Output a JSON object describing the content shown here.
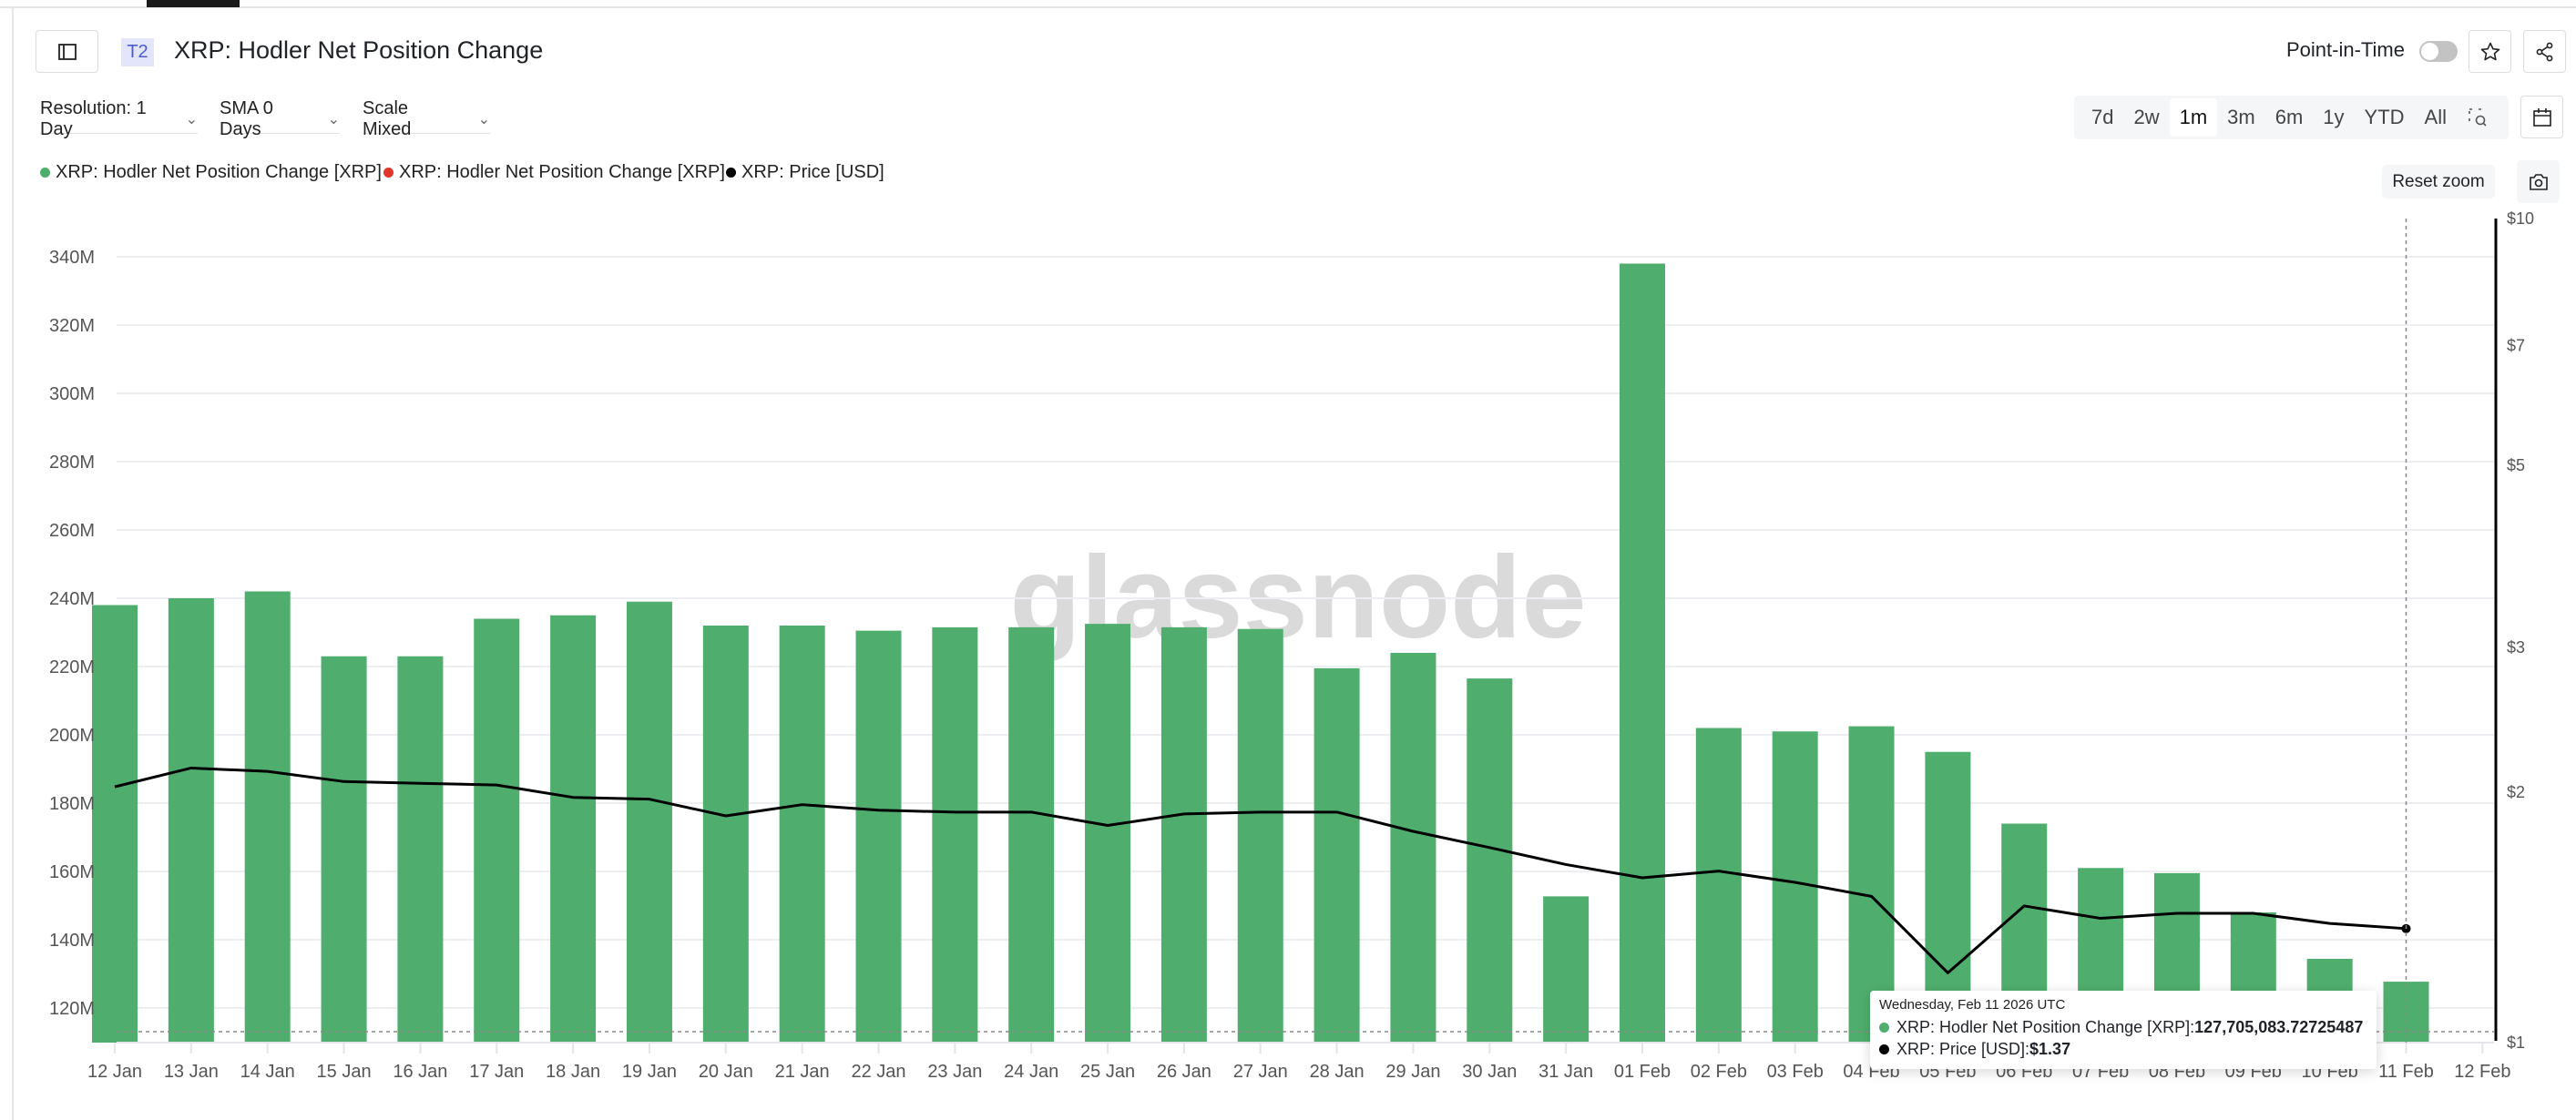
{
  "header": {
    "badge": "T2",
    "title": "XRP: Hodler Net Position Change",
    "point_in_time_label": "Point-in-Time",
    "point_in_time_on": false
  },
  "controls": {
    "resolution": "Resolution: 1 Day",
    "sma": "SMA 0 Days",
    "scale": "Scale Mixed",
    "ranges": [
      "7d",
      "2w",
      "1m",
      "3m",
      "6m",
      "1y",
      "YTD",
      "All"
    ],
    "active_range": "1m",
    "reset_zoom": "Reset zoom"
  },
  "legend": [
    {
      "label": "XRP: Hodler Net Position Change [XRP]",
      "color": "#4fae6d"
    },
    {
      "label": "XRP: Hodler Net Position Change [XRP]",
      "color": "#e0362b"
    },
    {
      "label": "XRP: Price [USD]",
      "color": "#000000"
    }
  ],
  "watermark": "glassnode",
  "tooltip": {
    "date": "Wednesday, Feb 11 2026 UTC",
    "series1_label": "XRP: Hodler Net Position Change [XRP]: ",
    "series1_value": "127,705,083.72725487",
    "series2_label": "XRP: Price [USD]: ",
    "series2_value": "$1.37"
  },
  "chart_data": {
    "type": "bar",
    "title": "XRP: Hodler Net Position Change",
    "categories": [
      "12 Jan",
      "13 Jan",
      "14 Jan",
      "15 Jan",
      "16 Jan",
      "17 Jan",
      "18 Jan",
      "19 Jan",
      "20 Jan",
      "21 Jan",
      "22 Jan",
      "23 Jan",
      "24 Jan",
      "25 Jan",
      "26 Jan",
      "27 Jan",
      "28 Jan",
      "29 Jan",
      "30 Jan",
      "31 Jan",
      "01 Feb",
      "02 Feb",
      "03 Feb",
      "04 Feb",
      "05 Feb",
      "06 Feb",
      "07 Feb",
      "08 Feb",
      "09 Feb",
      "10 Feb",
      "11 Feb"
    ],
    "x_tick_labels": [
      "12 Jan",
      "13 Jan",
      "14 Jan",
      "15 Jan",
      "16 Jan",
      "17 Jan",
      "18 Jan",
      "19 Jan",
      "20 Jan",
      "21 Jan",
      "22 Jan",
      "23 Jan",
      "24 Jan",
      "25 Jan",
      "26 Jan",
      "27 Jan",
      "28 Jan",
      "29 Jan",
      "30 Jan",
      "31 Jan",
      "01 Feb",
      "02 Feb",
      "03 Feb",
      "04 Feb",
      "05 Feb",
      "06 Feb",
      "07 Feb",
      "08 Feb",
      "09 Feb",
      "10 Feb",
      "11 Feb",
      "12 Feb"
    ],
    "series": [
      {
        "name": "XRP: Hodler Net Position Change [XRP]",
        "type": "bar",
        "axis": "left",
        "color": "#4fae6d",
        "values": [
          238000000,
          240000000,
          242000000,
          223000000,
          223000000,
          234000000,
          235000000,
          239000000,
          232000000,
          232000000,
          230500000,
          231500000,
          231500000,
          232500000,
          231500000,
          231000000,
          219500000,
          224000000,
          216500000,
          152700000,
          338000000,
          202000000,
          201000000,
          202500000,
          195000000,
          174000000,
          161000000,
          159500000,
          148000000,
          134400000,
          127705083.73
        ]
      },
      {
        "name": "XRP: Price [USD]",
        "type": "line",
        "axis": "right",
        "color": "#000000",
        "values": [
          2.04,
          2.15,
          2.13,
          2.07,
          2.06,
          2.05,
          1.98,
          1.97,
          1.88,
          1.94,
          1.91,
          1.9,
          1.9,
          1.83,
          1.89,
          1.9,
          1.9,
          1.8,
          1.72,
          1.64,
          1.58,
          1.61,
          1.56,
          1.5,
          1.21,
          1.46,
          1.41,
          1.43,
          1.43,
          1.39,
          1.37
        ]
      }
    ],
    "y_left": {
      "ticks": [
        "120M",
        "140M",
        "160M",
        "180M",
        "200M",
        "220M",
        "240M",
        "260M",
        "280M",
        "300M",
        "320M",
        "340M"
      ],
      "tick_values": [
        120000000,
        140000000,
        160000000,
        180000000,
        200000000,
        220000000,
        240000000,
        260000000,
        280000000,
        300000000,
        320000000,
        340000000
      ],
      "range": [
        110000000,
        350000000
      ]
    },
    "y_right": {
      "scale": "log",
      "ticks": [
        "$1",
        "$2",
        "$3",
        "$5",
        "$7",
        "$10"
      ],
      "tick_values": [
        1,
        2,
        3,
        5,
        7,
        10
      ],
      "range": [
        1,
        10
      ]
    },
    "grid": true,
    "legend_position": "top-left",
    "crosshair_category": "11 Feb"
  }
}
